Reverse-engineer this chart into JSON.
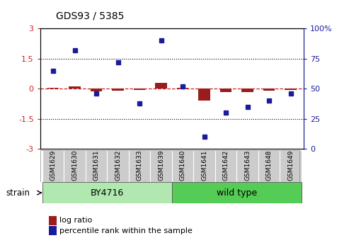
{
  "title": "GDS93 / 5385",
  "samples": [
    "GSM1629",
    "GSM1630",
    "GSM1631",
    "GSM1632",
    "GSM1633",
    "GSM1639",
    "GSM1640",
    "GSM1641",
    "GSM1642",
    "GSM1643",
    "GSM1648",
    "GSM1649"
  ],
  "log_ratio": [
    0.04,
    0.12,
    -0.13,
    -0.1,
    -0.07,
    0.28,
    0.04,
    -0.6,
    -0.17,
    -0.18,
    -0.1,
    -0.08
  ],
  "percentile": [
    65,
    82,
    46,
    72,
    38,
    90,
    52,
    10,
    30,
    35,
    40,
    46
  ],
  "group1_label": "BY4716",
  "group2_label": "wild type",
  "group1_count": 6,
  "group2_count": 6,
  "strain_label": "strain",
  "ylim_left": [
    -3,
    3
  ],
  "ylim_right": [
    0,
    100
  ],
  "yticks_left": [
    -3,
    -1.5,
    0,
    1.5,
    3
  ],
  "yticks_right": [
    0,
    25,
    50,
    75,
    100
  ],
  "hlines": [
    1.5,
    -1.5
  ],
  "bar_color": "#9b1c1c",
  "point_color": "#1c1c9b",
  "bg_color": "#ffffff",
  "dashed_zero_color": "#cc2222",
  "group1_bg": "#b0e8b0",
  "group2_bg": "#55cc55",
  "sample_bg": "#cccccc",
  "legend_bar_label": "log ratio",
  "legend_point_label": "percentile rank within the sample"
}
